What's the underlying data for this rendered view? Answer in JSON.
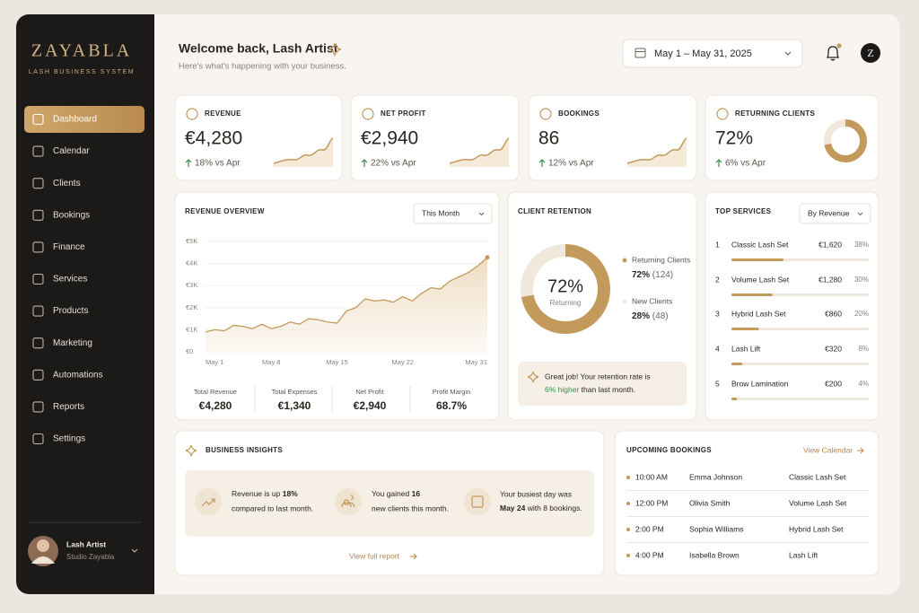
{
  "sidebar": {
    "brand": "ZAYABLA",
    "tagline": "LASH BUSINESS SYSTEM",
    "nav": [
      "Dashboard",
      "Calendar",
      "Clients",
      "Bookings",
      "Finance",
      "Services",
      "Products",
      "Marketing",
      "Automations",
      "Reports",
      "Settings"
    ],
    "user": {
      "name": "Lash Artist",
      "studio": "Studio Zayabla"
    }
  },
  "header": {
    "title": "Welcome back, Lash Artist",
    "subtitle": "Here's what's happening with your business.",
    "date_range": "May 1 – May 31, 2025",
    "avatar": "Z"
  },
  "kpis": [
    {
      "label": "REVENUE",
      "value": "€4,280",
      "change": "18% vs Apr"
    },
    {
      "label": "NET PROFIT",
      "value": "€2,940",
      "change": "22% vs Apr"
    },
    {
      "label": "BOOKINGS",
      "value": "86",
      "change": "12% vs Apr"
    },
    {
      "label": "RETURNING CLIENTS",
      "value": "72%",
      "change": "6% vs Apr"
    }
  ],
  "revenue_overview": {
    "title": "REVENUE OVERVIEW",
    "filter": "This Month",
    "chart": {
      "type": "line",
      "categories": [
        "May 1",
        null,
        null,
        null,
        null,
        null,
        null,
        "May 8",
        null,
        null,
        null,
        null,
        null,
        null,
        "May 15",
        null,
        null,
        null,
        null,
        null,
        null,
        "May 22",
        null,
        null,
        null,
        null,
        null,
        null,
        null,
        null,
        "May 31"
      ],
      "values": [
        900,
        1000,
        950,
        1200,
        1150,
        1050,
        1250,
        1050,
        1150,
        1350,
        1250,
        1500,
        1450,
        1350,
        1300,
        1850,
        2000,
        2400,
        2300,
        2350,
        2250,
        2500,
        2300,
        2650,
        2900,
        2850,
        3200,
        3400,
        3600,
        3900,
        4280
      ],
      "color": "#c49a5c",
      "ylim": [
        0,
        5000
      ],
      "yticks": [
        {
          "value": 0,
          "label": "€0"
        },
        {
          "value": 1000,
          "label": "€1K"
        },
        {
          "value": 2000,
          "label": "€2K"
        },
        {
          "value": 3000,
          "label": "€3K"
        },
        {
          "value": 4000,
          "label": "€4K"
        },
        {
          "value": 5000,
          "label": "€5K"
        }
      ],
      "grid": true
    },
    "summary": [
      {
        "label": "Total Revenue",
        "value": "€4,280"
      },
      {
        "label": "Total Expenses",
        "value": "€1,340"
      },
      {
        "label": "Net Profit",
        "value": "€2,940"
      },
      {
        "label": "Profit Margin",
        "value": "68.7%"
      }
    ]
  },
  "client_retention": {
    "title": "CLIENT RETENTION",
    "center_value": "72%",
    "center_label": "Returning",
    "segments": [
      {
        "name": "Returning Clients",
        "percent": 72,
        "percent_label": "72%",
        "count": "(124)",
        "color": "#c49a5c"
      },
      {
        "name": "New Clients",
        "percent": 28,
        "percent_label": "28%",
        "count": "(48)",
        "color": "#f1e8dc"
      }
    ],
    "note": {
      "line1": "Great job! Your retention rate is",
      "highlight": "6% higher",
      "rest": "than last month."
    }
  },
  "top_services": {
    "title": "TOP SERVICES",
    "filter": "By Revenue",
    "rows": [
      {
        "rank": 1,
        "name": "Classic Lash Set",
        "revenue": "€1,620",
        "share": 38,
        "share_label": "38%"
      },
      {
        "rank": 2,
        "name": "Volume Lash Set",
        "revenue": "€1,280",
        "share": 30,
        "share_label": "30%"
      },
      {
        "rank": 3,
        "name": "Hybrid Lash Set",
        "revenue": "€860",
        "share": 20,
        "share_label": "20%"
      },
      {
        "rank": 4,
        "name": "Lash Lift",
        "revenue": "€320",
        "share": 8,
        "share_label": "8%"
      },
      {
        "rank": 5,
        "name": "Brow Lamination",
        "revenue": "€200",
        "share": 4,
        "share_label": "4%"
      }
    ]
  },
  "business_insights": {
    "title": "BUSINESS INSIGHTS",
    "items": [
      {
        "pre": "Revenue is up",
        "em": "18%",
        "line2": "compared to last month."
      },
      {
        "pre": "You gained",
        "em": "16",
        "line2": "new clients this month."
      },
      {
        "line1": "Your busiest day was",
        "em": "May 24",
        "post": "with 8 bookings."
      }
    ],
    "link": "View full report"
  },
  "upcoming_bookings": {
    "title": "UPCOMING BOOKINGS",
    "link": "View Calendar",
    "rows": [
      {
        "time": "10:00 AM",
        "client": "Emma Johnson",
        "service": "Classic Lash Set"
      },
      {
        "time": "12:00 PM",
        "client": "Olivia Smith",
        "service": "Volume Lash Set"
      },
      {
        "time": "2:00 PM",
        "client": "Sophia Williams",
        "service": "Hybrid Lash Set"
      },
      {
        "time": "4:00 PM",
        "client": "Isabella Brown",
        "service": "Lash Lift"
      }
    ]
  }
}
